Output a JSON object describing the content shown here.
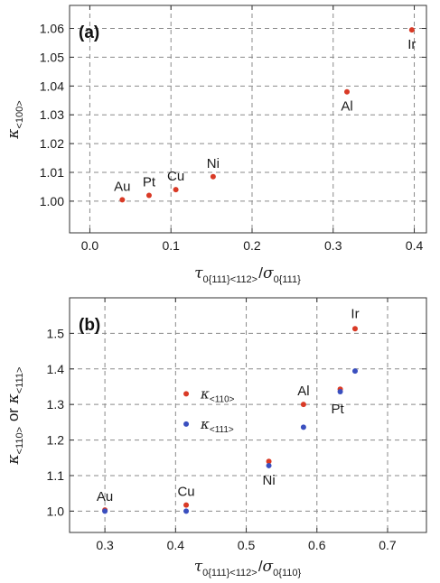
{
  "chart_data": [
    {
      "type": "scatter",
      "panel_label": "(a)",
      "ylabel": {
        "symbol": "κ",
        "sub": "<100>"
      },
      "xlabel": {
        "parts": [
          {
            "sym": "τ",
            "sub": "0{111}<112>"
          },
          {
            "text": "/"
          },
          {
            "sym": "σ",
            "sub": "0{111}"
          }
        ]
      },
      "xlim": [
        -0.025,
        0.415
      ],
      "ylim": [
        0.989,
        1.068
      ],
      "xticks": [
        0.0,
        0.1,
        0.2,
        0.3,
        0.4
      ],
      "xtick_labels": [
        "0.0",
        "0.1",
        "0.2",
        "0.3",
        "0.4"
      ],
      "yticks": [
        1.0,
        1.01,
        1.02,
        1.03,
        1.04,
        1.05,
        1.06
      ],
      "ytick_labels": [
        "1.00",
        "1.01",
        "1.02",
        "1.03",
        "1.04",
        "1.05",
        "1.06"
      ],
      "grid": true,
      "series": [
        {
          "color": "#d93a26",
          "points": [
            {
              "label": "Au",
              "x": 0.04,
              "y": 1.0005
            },
            {
              "label": "Pt",
              "x": 0.073,
              "y": 1.002
            },
            {
              "label": "Cu",
              "x": 0.106,
              "y": 1.004
            },
            {
              "label": "Ni",
              "x": 0.152,
              "y": 1.0085
            },
            {
              "label": "Al",
              "x": 0.317,
              "y": 1.038
            },
            {
              "label": "Ir",
              "x": 0.397,
              "y": 1.0595
            }
          ]
        }
      ]
    },
    {
      "type": "scatter",
      "panel_label": "(b)",
      "ylabel": {
        "parts": [
          {
            "sym": "κ",
            "sub": "<110>"
          },
          {
            "text": " or "
          },
          {
            "sym": "κ",
            "sub": "<111>"
          }
        ]
      },
      "xlabel": {
        "parts": [
          {
            "sym": "τ",
            "sub": "0{111}<112>"
          },
          {
            "text": "/"
          },
          {
            "sym": "σ",
            "sub": "0{110}"
          }
        ]
      },
      "xlim": [
        0.25,
        0.755
      ],
      "ylim": [
        0.94,
        1.6
      ],
      "xticks": [
        0.3,
        0.4,
        0.5,
        0.6,
        0.7
      ],
      "xtick_labels": [
        "0.3",
        "0.4",
        "0.5",
        "0.6",
        "0.7"
      ],
      "yticks": [
        1.0,
        1.1,
        1.2,
        1.3,
        1.4,
        1.5
      ],
      "ytick_labels": [
        "1.0",
        "1.1",
        "1.2",
        "1.3",
        "1.4",
        "1.5"
      ],
      "grid": true,
      "legend": {
        "placement": "center-left"
      },
      "series": [
        {
          "name": "κ<110>",
          "legend_symbol": "κ",
          "legend_sub": "<110>",
          "color": "#d93a26",
          "points": [
            {
              "label": "Au",
              "x": 0.3,
              "y": 1.003
            },
            {
              "label": "Cu",
              "x": 0.415,
              "y": 1.017
            },
            {
              "label": "Ni",
              "x": 0.532,
              "y": 1.14
            },
            {
              "label": "Al",
              "x": 0.581,
              "y": 1.3
            },
            {
              "label": "Pt",
              "x": 0.633,
              "y": 1.343
            },
            {
              "label": "Ir",
              "x": 0.654,
              "y": 1.513
            }
          ]
        },
        {
          "name": "κ<111>",
          "legend_symbol": "κ",
          "legend_sub": "<111>",
          "color": "#3a4fbf",
          "points": [
            {
              "label": "Au",
              "x": 0.3,
              "y": 1.0
            },
            {
              "label": "Cu",
              "x": 0.415,
              "y": 1.0
            },
            {
              "label": "Ni",
              "x": 0.532,
              "y": 1.128
            },
            {
              "label": "Al",
              "x": 0.581,
              "y": 1.236
            },
            {
              "label": "Pt",
              "x": 0.633,
              "y": 1.336
            },
            {
              "label": "Ir",
              "x": 0.654,
              "y": 1.394
            }
          ]
        }
      ]
    }
  ]
}
